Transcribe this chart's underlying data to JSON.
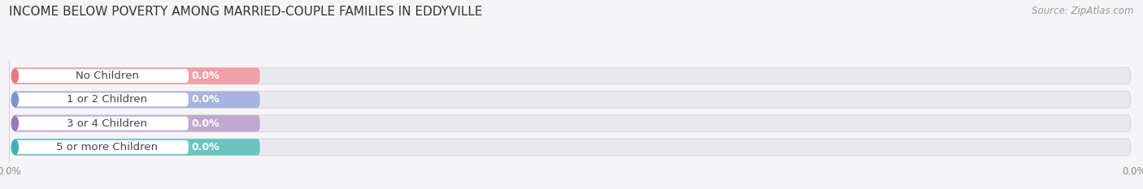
{
  "title": "INCOME BELOW POVERTY AMONG MARRIED-COUPLE FAMILIES IN EDDYVILLE",
  "source": "Source: ZipAtlas.com",
  "categories": [
    "No Children",
    "1 or 2 Children",
    "3 or 4 Children",
    "5 or more Children"
  ],
  "values": [
    0.0,
    0.0,
    0.0,
    0.0
  ],
  "bar_colors": [
    "#f2a0a8",
    "#a8b4e0",
    "#c0a8d0",
    "#6cc4c0"
  ],
  "dot_colors": [
    "#e87880",
    "#8090d0",
    "#9878b8",
    "#40b0b0"
  ],
  "background_color": "#f5f5f8",
  "bar_bg_color": "#e8e8ee",
  "white_pill_color": "#ffffff",
  "title_fontsize": 11,
  "source_fontsize": 8.5,
  "label_fontsize": 9.5,
  "value_fontsize": 9.0,
  "tick_fontsize": 8.5
}
